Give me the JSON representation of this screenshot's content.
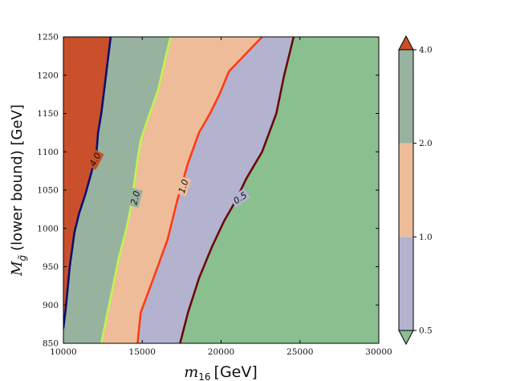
{
  "chart_data": {
    "type": "contour",
    "x_axis": {
      "label_math": "m",
      "label_sub": "16",
      "label_unit": "[GeV]",
      "range": [
        10000,
        30000
      ],
      "ticks": [
        10000,
        15000,
        20000,
        25000,
        30000
      ],
      "tick_labels": [
        "10000",
        "15000",
        "20000",
        "25000",
        "30000"
      ]
    },
    "y_axis": {
      "label_math": "M",
      "label_sub": "g̃",
      "label_text": "(lower bound) [GeV]",
      "range": [
        850,
        1250
      ],
      "ticks": [
        850,
        900,
        950,
        1000,
        1050,
        1100,
        1150,
        1200,
        1250
      ],
      "tick_labels": [
        "850",
        "900",
        "950",
        "1000",
        "1050",
        "1100",
        "1150",
        "1200",
        "1250"
      ]
    },
    "colorbar": {
      "levels": [
        0.5,
        1.0,
        2.0,
        4.0
      ],
      "tick_labels": [
        "0.5",
        "1.0",
        "2.0",
        "4.0"
      ],
      "extend": "both",
      "under_color": "#8abf8f",
      "over_color": "#c9502b"
    },
    "regions": [
      {
        "range": "below 0.5",
        "color": "#8abf8f"
      },
      {
        "range": "0.5-1.0",
        "color": "#b3b3cf"
      },
      {
        "range": "1.0-2.0",
        "color": "#efbc9a"
      },
      {
        "range": "2.0-4.0",
        "color": "#97b39f"
      },
      {
        "range": "above 4.0",
        "color": "#c9502b"
      }
    ],
    "contours": [
      {
        "level": "4.0",
        "color": "#0e0e6f",
        "points": [
          [
            10000,
            870
          ],
          [
            10150,
            895
          ],
          [
            10400,
            950
          ],
          [
            10700,
            995
          ],
          [
            11000,
            1020
          ],
          [
            11400,
            1045
          ],
          [
            11800,
            1075
          ],
          [
            12100,
            1100
          ],
          [
            12200,
            1125
          ],
          [
            12400,
            1150
          ],
          [
            12700,
            1200
          ],
          [
            13000,
            1250
          ]
        ]
      },
      {
        "level": "2.0",
        "color": "#bdf552",
        "points": [
          [
            12400,
            850
          ],
          [
            12600,
            870
          ],
          [
            13000,
            910
          ],
          [
            13500,
            960
          ],
          [
            14000,
            1000
          ],
          [
            14300,
            1030
          ],
          [
            14500,
            1060
          ],
          [
            14700,
            1090
          ],
          [
            14900,
            1115
          ],
          [
            15300,
            1140
          ],
          [
            16000,
            1180
          ],
          [
            16500,
            1225
          ],
          [
            16800,
            1250
          ]
        ]
      },
      {
        "level": "1.0",
        "color": "#ff3b14",
        "points": [
          [
            14700,
            850
          ],
          [
            14900,
            890
          ],
          [
            15800,
            940
          ],
          [
            16600,
            985
          ],
          [
            17200,
            1035
          ],
          [
            17900,
            1085
          ],
          [
            18600,
            1125
          ],
          [
            19300,
            1150
          ],
          [
            19900,
            1175
          ],
          [
            20500,
            1205
          ],
          [
            22600,
            1250
          ]
        ]
      },
      {
        "level": "0.5",
        "color": "#6b0a0a",
        "points": [
          [
            17400,
            850
          ],
          [
            17900,
            890
          ],
          [
            18600,
            935
          ],
          [
            19400,
            975
          ],
          [
            20200,
            1010
          ],
          [
            20900,
            1035
          ],
          [
            21600,
            1065
          ],
          [
            22600,
            1100
          ],
          [
            23500,
            1150
          ],
          [
            24000,
            1200
          ],
          [
            24600,
            1250
          ]
        ]
      }
    ],
    "contour_labels": [
      {
        "text": "4.0",
        "at": [
          12000,
          1090
        ],
        "angle": -62
      },
      {
        "text": "2.0",
        "at": [
          14550,
          1040
        ],
        "angle": -76
      },
      {
        "text": "1.0",
        "at": [
          17600,
          1055
        ],
        "angle": -72
      },
      {
        "text": "0.5",
        "at": [
          21200,
          1040
        ],
        "angle": -34
      }
    ]
  }
}
